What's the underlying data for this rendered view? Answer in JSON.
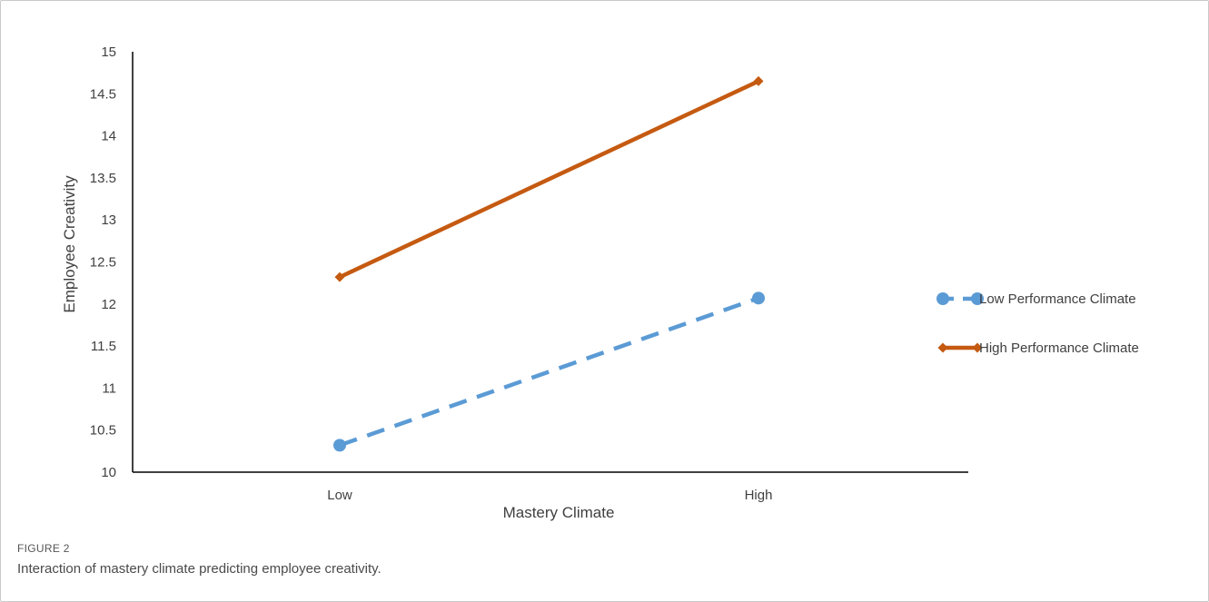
{
  "figure": {
    "label": "FIGURE 2",
    "caption": "Interaction of mastery climate predicting employee creativity."
  },
  "chart_data": {
    "type": "line",
    "categories": [
      "Low",
      "High"
    ],
    "xlabel": "Mastery Climate",
    "ylabel": "Employee Creativity",
    "ylim": [
      10,
      15
    ],
    "yticks": [
      10,
      10.5,
      11,
      11.5,
      12,
      12.5,
      13,
      13.5,
      14,
      14.5,
      15
    ],
    "ytick_labels": [
      "10",
      "10.5",
      "11",
      "11.5",
      "12",
      "12.5",
      "13",
      "13.5",
      "14",
      "14.5",
      "15"
    ],
    "grid": false,
    "legend_position": "right",
    "series": [
      {
        "name": "Low Performance Climate",
        "values": [
          10.32,
          12.07
        ],
        "color": "#5b9bd5",
        "line_style": "dashed",
        "marker": "circle"
      },
      {
        "name": "High Performance Climate",
        "values": [
          12.32,
          14.65
        ],
        "color": "#c55a11",
        "line_style": "solid",
        "marker": "diamond"
      }
    ]
  }
}
